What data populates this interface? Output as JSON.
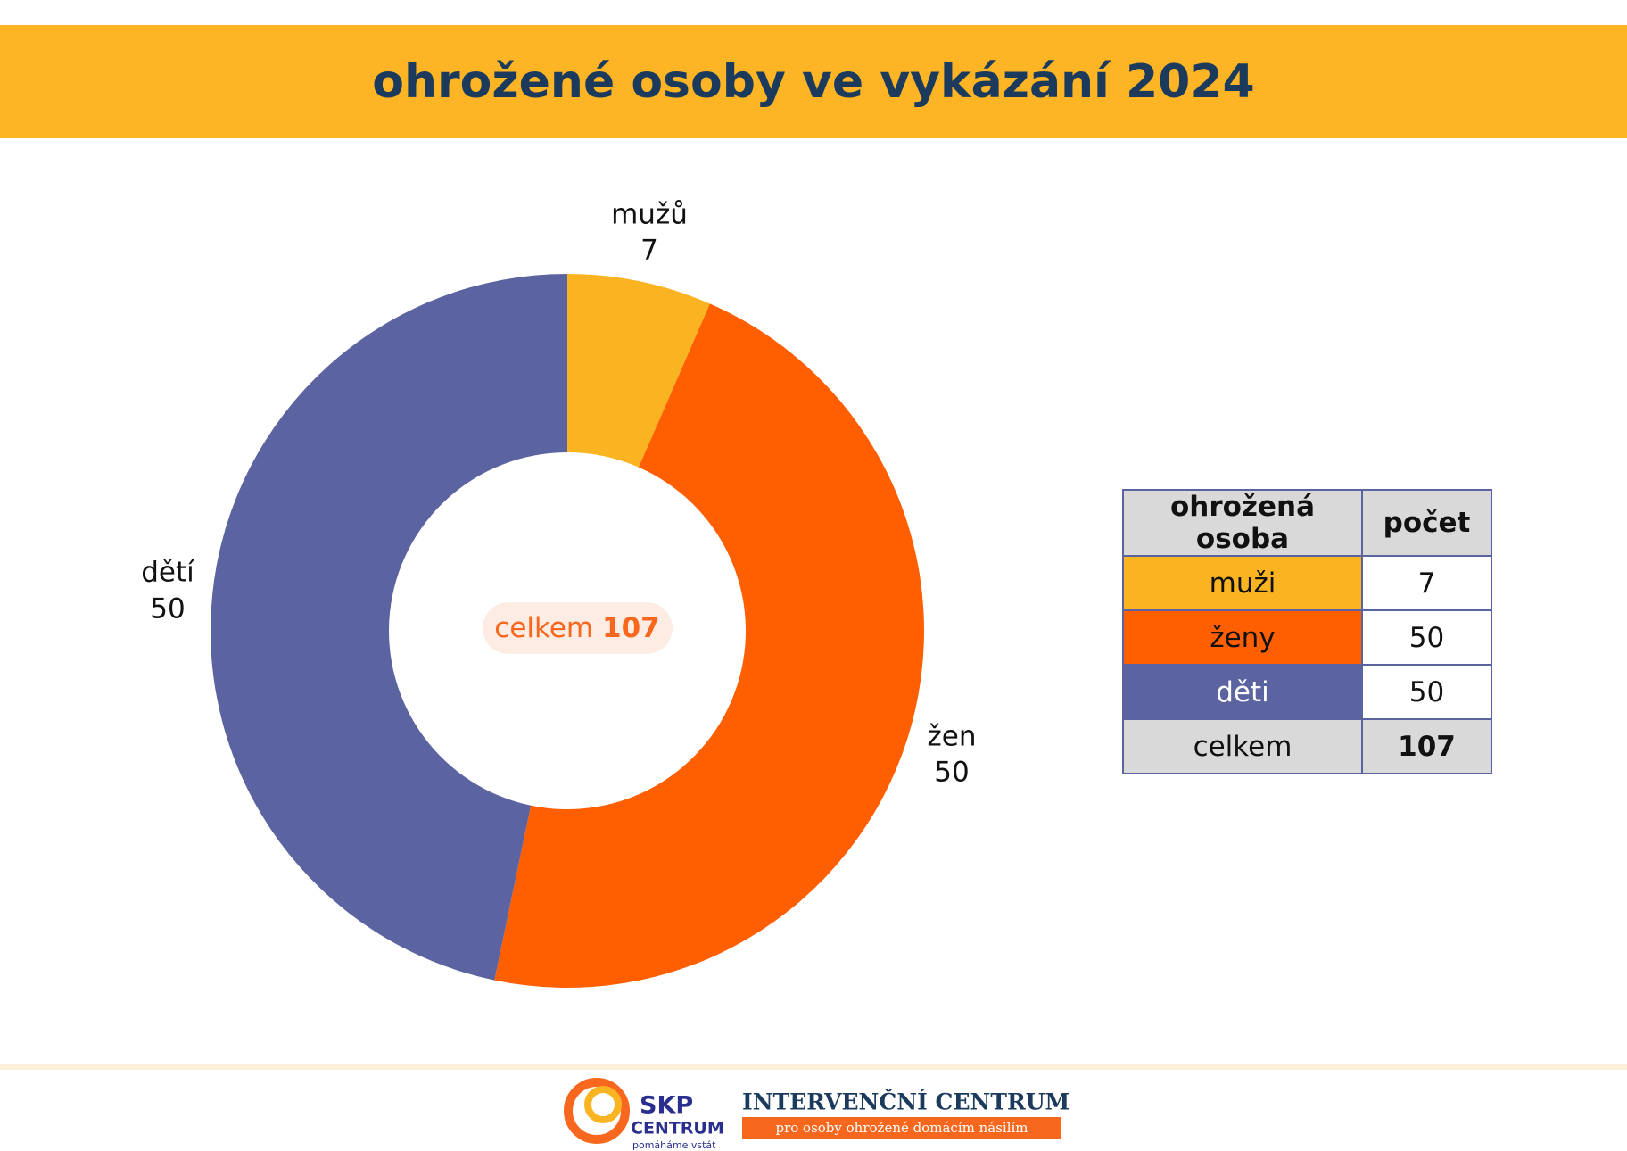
{
  "chart_data": {
    "type": "pie",
    "title": "ohrožené osoby ve vykázání 2024",
    "categories": [
      "mužů",
      "žen",
      "dětí"
    ],
    "values": [
      7,
      50,
      50
    ],
    "colors": [
      "#fbb421",
      "#ff5f00",
      "#5b63a0"
    ],
    "center_label": "celkem",
    "center_value": 107
  },
  "table": {
    "header": [
      "ohrožená osoba",
      "počet"
    ],
    "rows": [
      [
        "muži",
        7
      ],
      [
        "ženy",
        50
      ],
      [
        "děti",
        50
      ],
      [
        "celkem",
        107
      ]
    ]
  },
  "footer": {
    "logo1_title": "SKP",
    "logo1_subtitle": "CENTRUM",
    "logo1_slogan": "pomáháme vstát",
    "logo2_title": "INTERVENČNÍ CENTRUM",
    "logo2_subtitle": "pro osoby ohrožené domácím násilím"
  }
}
